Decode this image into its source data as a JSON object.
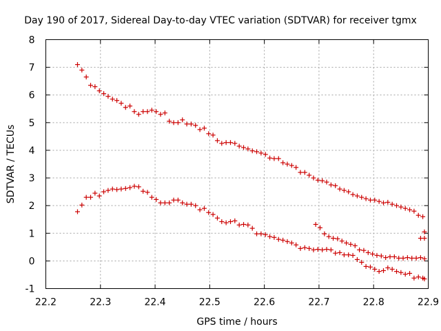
{
  "chart_data": {
    "type": "scatter",
    "title": "Day 190 of 2017, Sidereal Day-to-day VTEC variation (SDTVAR) for receiver tgmx",
    "xlabel": "GPS time / hours",
    "ylabel": "SDTVAR / TECUs",
    "xlim": [
      22.2,
      22.9
    ],
    "ylim": [
      -1,
      8
    ],
    "xticks": [
      22.2,
      22.3,
      22.4,
      22.5,
      22.6,
      22.7,
      22.8,
      22.9
    ],
    "xtick_labels": [
      "22.2",
      "22.3",
      "22.4",
      "22.5",
      "22.6",
      "22.7",
      "22.8",
      "22.9"
    ],
    "yticks": [
      -1,
      0,
      1,
      2,
      3,
      4,
      5,
      6,
      7,
      8
    ],
    "ytick_labels": [
      "-1",
      "0",
      "1",
      "2",
      "3",
      "4",
      "5",
      "6",
      "7",
      "8"
    ],
    "grid": true,
    "marker": "+",
    "color": "#cc0000",
    "series": [
      {
        "name": "upper track",
        "points": [
          [
            22.258,
            7.1
          ],
          [
            22.266,
            6.9
          ],
          [
            22.274,
            6.65
          ],
          [
            22.282,
            6.35
          ],
          [
            22.29,
            6.3
          ],
          [
            22.298,
            6.15
          ],
          [
            22.306,
            6.05
          ],
          [
            22.314,
            5.95
          ],
          [
            22.322,
            5.85
          ],
          [
            22.33,
            5.8
          ],
          [
            22.338,
            5.7
          ],
          [
            22.346,
            5.55
          ],
          [
            22.354,
            5.6
          ],
          [
            22.362,
            5.4
          ],
          [
            22.37,
            5.3
          ],
          [
            22.378,
            5.4
          ],
          [
            22.386,
            5.4
          ],
          [
            22.394,
            5.45
          ],
          [
            22.402,
            5.4
          ],
          [
            22.41,
            5.3
          ],
          [
            22.418,
            5.35
          ],
          [
            22.426,
            5.05
          ],
          [
            22.434,
            5.0
          ],
          [
            22.442,
            5.0
          ],
          [
            22.45,
            5.1
          ],
          [
            22.458,
            4.95
          ],
          [
            22.466,
            4.95
          ],
          [
            22.474,
            4.9
          ],
          [
            22.482,
            4.75
          ],
          [
            22.49,
            4.8
          ],
          [
            22.498,
            4.6
          ],
          [
            22.506,
            4.55
          ],
          [
            22.514,
            4.35
          ],
          [
            22.522,
            4.25
          ],
          [
            22.53,
            4.28
          ],
          [
            22.538,
            4.28
          ],
          [
            22.546,
            4.25
          ],
          [
            22.554,
            4.15
          ],
          [
            22.562,
            4.1
          ],
          [
            22.57,
            4.05
          ],
          [
            22.578,
            3.98
          ],
          [
            22.586,
            3.95
          ],
          [
            22.594,
            3.9
          ],
          [
            22.602,
            3.85
          ],
          [
            22.61,
            3.72
          ],
          [
            22.618,
            3.7
          ],
          [
            22.626,
            3.7
          ],
          [
            22.634,
            3.55
          ],
          [
            22.642,
            3.5
          ],
          [
            22.65,
            3.45
          ],
          [
            22.658,
            3.38
          ],
          [
            22.666,
            3.2
          ],
          [
            22.674,
            3.2
          ],
          [
            22.682,
            3.1
          ],
          [
            22.69,
            3.0
          ],
          [
            22.698,
            2.92
          ],
          [
            22.706,
            2.9
          ],
          [
            22.714,
            2.85
          ],
          [
            22.722,
            2.75
          ],
          [
            22.73,
            2.72
          ],
          [
            22.738,
            2.6
          ],
          [
            22.746,
            2.55
          ],
          [
            22.754,
            2.5
          ],
          [
            22.762,
            2.4
          ],
          [
            22.77,
            2.35
          ],
          [
            22.778,
            2.3
          ],
          [
            22.786,
            2.25
          ],
          [
            22.794,
            2.2
          ],
          [
            22.802,
            2.2
          ],
          [
            22.81,
            2.15
          ],
          [
            22.818,
            2.1
          ],
          [
            22.826,
            2.12
          ],
          [
            22.834,
            2.05
          ],
          [
            22.842,
            2.0
          ],
          [
            22.85,
            1.95
          ],
          [
            22.858,
            1.9
          ],
          [
            22.866,
            1.85
          ],
          [
            22.874,
            1.8
          ],
          [
            22.882,
            1.65
          ],
          [
            22.89,
            1.6
          ],
          [
            22.893,
            1.05
          ],
          [
            22.886,
            0.82
          ],
          [
            22.893,
            0.82
          ]
        ]
      },
      {
        "name": "lower track",
        "points": [
          [
            22.258,
            1.78
          ],
          [
            22.266,
            2.02
          ],
          [
            22.274,
            2.3
          ],
          [
            22.282,
            2.3
          ],
          [
            22.29,
            2.45
          ],
          [
            22.298,
            2.35
          ],
          [
            22.306,
            2.5
          ],
          [
            22.314,
            2.55
          ],
          [
            22.322,
            2.6
          ],
          [
            22.33,
            2.58
          ],
          [
            22.338,
            2.6
          ],
          [
            22.346,
            2.62
          ],
          [
            22.354,
            2.65
          ],
          [
            22.362,
            2.7
          ],
          [
            22.37,
            2.68
          ],
          [
            22.378,
            2.52
          ],
          [
            22.386,
            2.48
          ],
          [
            22.394,
            2.3
          ],
          [
            22.402,
            2.22
          ],
          [
            22.41,
            2.1
          ],
          [
            22.418,
            2.1
          ],
          [
            22.426,
            2.1
          ],
          [
            22.434,
            2.2
          ],
          [
            22.442,
            2.2
          ],
          [
            22.45,
            2.1
          ],
          [
            22.458,
            2.05
          ],
          [
            22.466,
            2.05
          ],
          [
            22.474,
            2.0
          ],
          [
            22.482,
            1.85
          ],
          [
            22.49,
            1.9
          ],
          [
            22.498,
            1.75
          ],
          [
            22.506,
            1.68
          ],
          [
            22.514,
            1.55
          ],
          [
            22.522,
            1.42
          ],
          [
            22.53,
            1.38
          ],
          [
            22.538,
            1.42
          ],
          [
            22.546,
            1.45
          ],
          [
            22.554,
            1.3
          ],
          [
            22.562,
            1.32
          ],
          [
            22.57,
            1.3
          ],
          [
            22.578,
            1.18
          ],
          [
            22.586,
            0.98
          ],
          [
            22.594,
            0.98
          ],
          [
            22.602,
            0.95
          ],
          [
            22.61,
            0.88
          ],
          [
            22.618,
            0.85
          ],
          [
            22.626,
            0.78
          ],
          [
            22.634,
            0.75
          ],
          [
            22.642,
            0.7
          ],
          [
            22.65,
            0.65
          ],
          [
            22.658,
            0.58
          ],
          [
            22.666,
            0.45
          ],
          [
            22.674,
            0.48
          ],
          [
            22.682,
            0.45
          ],
          [
            22.69,
            0.4
          ],
          [
            22.698,
            0.42
          ],
          [
            22.706,
            0.4
          ],
          [
            22.714,
            0.42
          ],
          [
            22.722,
            0.4
          ],
          [
            22.73,
            0.28
          ],
          [
            22.738,
            0.3
          ],
          [
            22.746,
            0.22
          ],
          [
            22.754,
            0.22
          ],
          [
            22.762,
            0.2
          ],
          [
            22.77,
            0.05
          ],
          [
            22.778,
            -0.05
          ],
          [
            22.786,
            -0.2
          ],
          [
            22.794,
            -0.22
          ],
          [
            22.802,
            -0.3
          ],
          [
            22.81,
            -0.38
          ],
          [
            22.818,
            -0.35
          ],
          [
            22.826,
            -0.25
          ],
          [
            22.834,
            -0.3
          ],
          [
            22.842,
            -0.38
          ],
          [
            22.85,
            -0.42
          ],
          [
            22.858,
            -0.48
          ],
          [
            22.866,
            -0.45
          ],
          [
            22.874,
            -0.62
          ],
          [
            22.882,
            -0.58
          ],
          [
            22.89,
            -0.62
          ],
          [
            22.893,
            -0.65
          ]
        ]
      },
      {
        "name": "middle track",
        "points": [
          [
            22.694,
            1.32
          ],
          [
            22.702,
            1.2
          ],
          [
            22.71,
            0.98
          ],
          [
            22.718,
            0.88
          ],
          [
            22.726,
            0.82
          ],
          [
            22.734,
            0.8
          ],
          [
            22.742,
            0.72
          ],
          [
            22.75,
            0.65
          ],
          [
            22.758,
            0.6
          ],
          [
            22.766,
            0.55
          ],
          [
            22.774,
            0.4
          ],
          [
            22.782,
            0.38
          ],
          [
            22.79,
            0.3
          ],
          [
            22.798,
            0.25
          ],
          [
            22.806,
            0.2
          ],
          [
            22.814,
            0.18
          ],
          [
            22.822,
            0.12
          ],
          [
            22.83,
            0.15
          ],
          [
            22.838,
            0.15
          ],
          [
            22.846,
            0.1
          ],
          [
            22.854,
            0.1
          ],
          [
            22.862,
            0.12
          ],
          [
            22.87,
            0.1
          ],
          [
            22.878,
            0.1
          ],
          [
            22.886,
            0.12
          ],
          [
            22.893,
            0.08
          ]
        ]
      }
    ]
  }
}
